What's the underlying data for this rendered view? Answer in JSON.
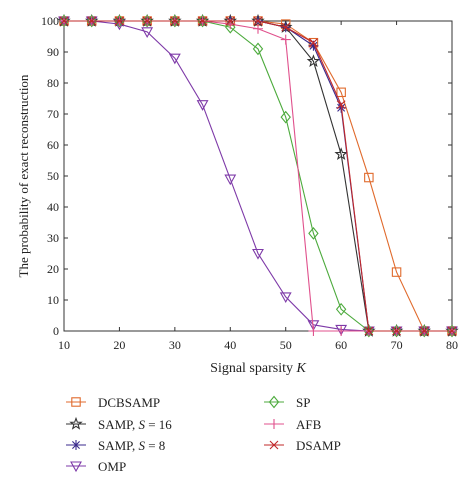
{
  "chart_data": {
    "type": "line",
    "xlabel": "Signal sparsity",
    "xlabel_var": "K",
    "ylabel": "The probability of exact reconstruction",
    "xlim": [
      10,
      80
    ],
    "ylim": [
      0,
      100
    ],
    "xticks": [
      10,
      20,
      30,
      40,
      50,
      60,
      70,
      80
    ],
    "yticks": [
      0,
      10,
      20,
      30,
      40,
      50,
      60,
      70,
      80,
      90,
      100
    ],
    "grid": false,
    "legend_position": "below",
    "series": [
      {
        "name": "DCBSAMP",
        "color": "#e06a2c",
        "marker": "square",
        "points": [
          [
            10,
            100
          ],
          [
            15,
            100
          ],
          [
            20,
            100
          ],
          [
            25,
            100
          ],
          [
            30,
            100
          ],
          [
            35,
            100
          ],
          [
            40,
            100
          ],
          [
            45,
            100
          ],
          [
            50,
            99
          ],
          [
            55,
            93
          ],
          [
            60,
            77
          ],
          [
            65,
            49.5
          ],
          [
            70,
            19
          ],
          [
            75,
            0
          ],
          [
            80,
            0
          ]
        ]
      },
      {
        "name": "SAMP, S = 16",
        "color": "#333333",
        "marker": "star",
        "points": [
          [
            10,
            100
          ],
          [
            15,
            100
          ],
          [
            20,
            100
          ],
          [
            25,
            100
          ],
          [
            30,
            100
          ],
          [
            35,
            100
          ],
          [
            40,
            100
          ],
          [
            45,
            100
          ],
          [
            50,
            98
          ],
          [
            55,
            87
          ],
          [
            60,
            57
          ],
          [
            65,
            0
          ],
          [
            70,
            0
          ],
          [
            75,
            0
          ],
          [
            80,
            0
          ]
        ]
      },
      {
        "name": "SAMP, S = 8",
        "color": "#3a2a8c",
        "marker": "asterisk",
        "points": [
          [
            10,
            100
          ],
          [
            15,
            100
          ],
          [
            20,
            100
          ],
          [
            25,
            100
          ],
          [
            30,
            100
          ],
          [
            35,
            100
          ],
          [
            40,
            100
          ],
          [
            45,
            100
          ],
          [
            50,
            98
          ],
          [
            55,
            92
          ],
          [
            60,
            72
          ],
          [
            65,
            0
          ],
          [
            70,
            0
          ],
          [
            75,
            0
          ],
          [
            80,
            0
          ]
        ]
      },
      {
        "name": "OMP",
        "color": "#7e3aa8",
        "marker": "triangle-down",
        "points": [
          [
            10,
            100
          ],
          [
            15,
            100
          ],
          [
            20,
            99
          ],
          [
            25,
            96.5
          ],
          [
            30,
            88
          ],
          [
            35,
            73
          ],
          [
            40,
            49
          ],
          [
            45,
            25
          ],
          [
            50,
            11
          ],
          [
            55,
            2
          ],
          [
            60,
            0.5
          ],
          [
            65,
            0
          ],
          [
            70,
            0
          ],
          [
            75,
            0
          ],
          [
            80,
            0
          ]
        ]
      },
      {
        "name": "SP",
        "color": "#4caa3c",
        "marker": "diamond",
        "points": [
          [
            10,
            100
          ],
          [
            15,
            100
          ],
          [
            20,
            100
          ],
          [
            25,
            100
          ],
          [
            30,
            100
          ],
          [
            35,
            100
          ],
          [
            40,
            98
          ],
          [
            45,
            91
          ],
          [
            50,
            69
          ],
          [
            55,
            31.5
          ],
          [
            60,
            7
          ],
          [
            65,
            0
          ],
          [
            70,
            0
          ],
          [
            75,
            0
          ],
          [
            80,
            0
          ]
        ]
      },
      {
        "name": "AFB",
        "color": "#e0508c",
        "marker": "plus",
        "points": [
          [
            10,
            100
          ],
          [
            15,
            100
          ],
          [
            20,
            100
          ],
          [
            25,
            100
          ],
          [
            30,
            100
          ],
          [
            35,
            100
          ],
          [
            40,
            99
          ],
          [
            45,
            97.5
          ],
          [
            50,
            94
          ],
          [
            55,
            0
          ],
          [
            60,
            0
          ],
          [
            65,
            0
          ],
          [
            70,
            0
          ],
          [
            75,
            0
          ],
          [
            80,
            0
          ]
        ]
      },
      {
        "name": "DSAMP",
        "color": "#c0282a",
        "marker": "x",
        "points": [
          [
            10,
            100
          ],
          [
            15,
            100
          ],
          [
            20,
            100
          ],
          [
            25,
            100
          ],
          [
            30,
            100
          ],
          [
            35,
            100
          ],
          [
            40,
            100
          ],
          [
            45,
            100
          ],
          [
            50,
            98
          ],
          [
            55,
            93
          ],
          [
            60,
            73
          ],
          [
            65,
            0
          ],
          [
            70,
            0
          ],
          [
            75,
            0
          ],
          [
            80,
            0
          ]
        ]
      }
    ],
    "legend": {
      "columns": [
        [
          "DCBSAMP",
          "SAMP, S = 16",
          "SAMP, S = 8",
          "OMP"
        ],
        [
          "SP",
          "AFB",
          "DSAMP"
        ]
      ]
    }
  }
}
